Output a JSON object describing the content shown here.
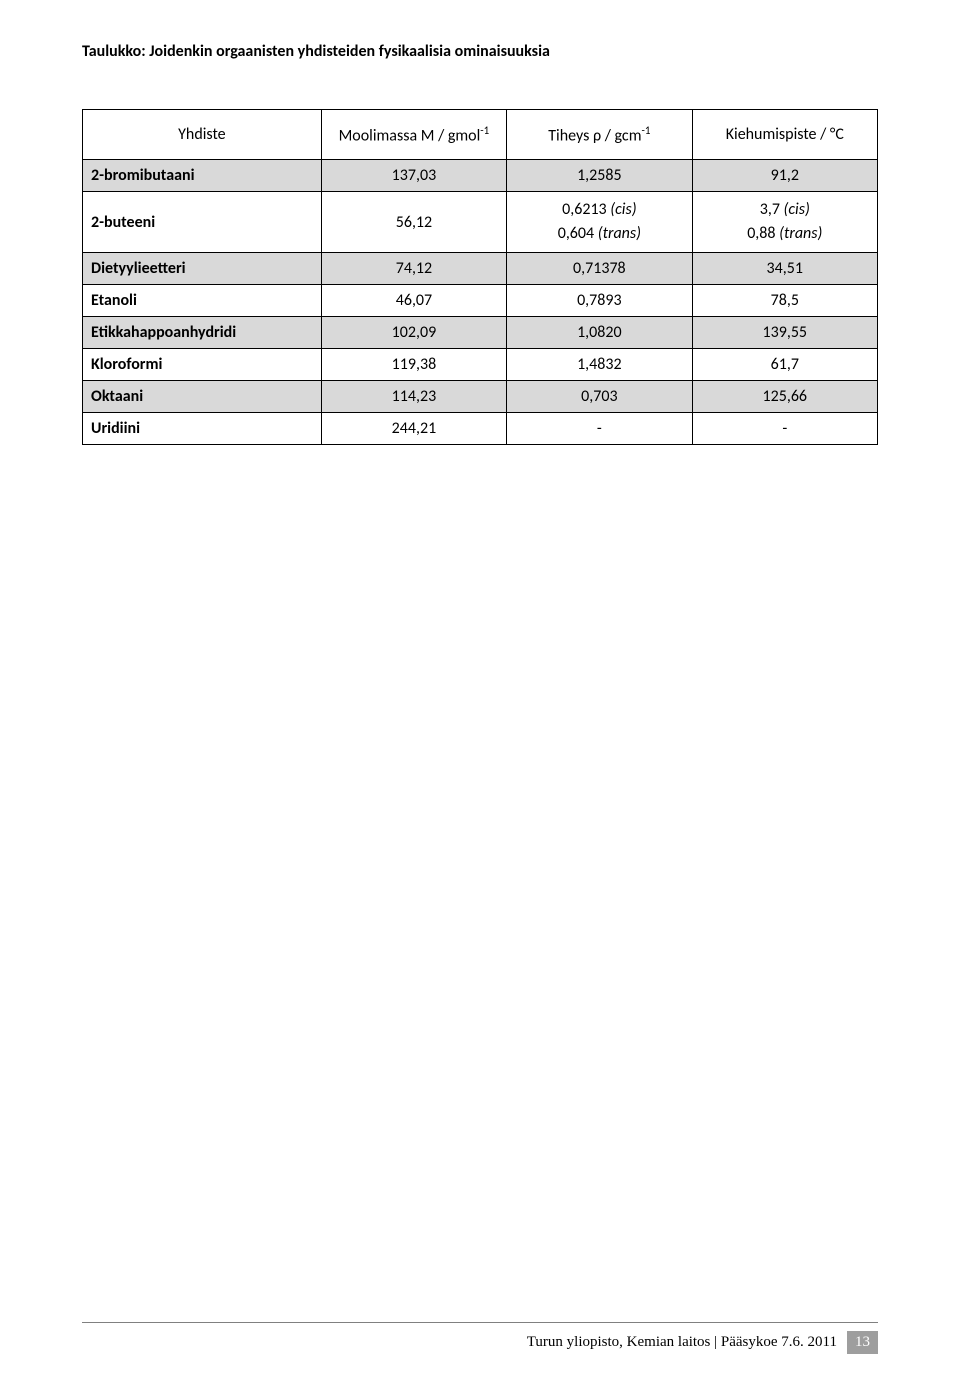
{
  "page_title": "Taulukko: Joidenkin orgaanisten yhdisteiden fysikaalisia ominaisuuksia",
  "table": {
    "headers": {
      "compound": "Yhdiste",
      "molar_mass_label": "Moolimassa M / gmol",
      "molar_mass_exp": "-1",
      "density_label": "Tiheys ρ / gcm",
      "density_exp": "-1",
      "boiling_point": "Kiehumispiste / °C"
    },
    "rows": [
      {
        "compound": "2-bromibutaani",
        "molar_mass": "137,03",
        "density": "1,2585",
        "boiling_point": "91,2",
        "shaded": true,
        "multiline": false
      },
      {
        "compound": "2-buteeni",
        "molar_mass": "56,12",
        "density_line1": "0,6213 ",
        "density_cis": "(cis)",
        "density_line2": "0,604 ",
        "density_trans": "(trans)",
        "bp_line1": "3,7 ",
        "bp_cis": "(cis)",
        "bp_line2": "0,88 ",
        "bp_trans": "(trans)",
        "shaded": false,
        "multiline": true
      },
      {
        "compound": "Dietyylieetteri",
        "molar_mass": "74,12",
        "density": "0,71378",
        "boiling_point": "34,51",
        "shaded": true,
        "multiline": false
      },
      {
        "compound": "Etanoli",
        "molar_mass": "46,07",
        "density": "0,7893",
        "boiling_point": "78,5",
        "shaded": false,
        "multiline": false
      },
      {
        "compound": "Etikkahappoanhydridi",
        "molar_mass": "102,09",
        "density": "1,0820",
        "boiling_point": "139,55",
        "shaded": true,
        "multiline": false
      },
      {
        "compound": "Kloroformi",
        "molar_mass": "119,38",
        "density": "1,4832",
        "boiling_point": "61,7",
        "shaded": false,
        "multiline": false
      },
      {
        "compound": "Oktaani",
        "molar_mass": "114,23",
        "density": "0,703",
        "boiling_point": "125,66",
        "shaded": true,
        "multiline": false
      },
      {
        "compound": "Uridiini",
        "molar_mass": "244,21",
        "density": "-",
        "boiling_point": "-",
        "shaded": false,
        "multiline": false
      }
    ]
  },
  "footer": {
    "text": "Turun yliopisto, Kemian laitos | Pääsykoe 7.6. 2011",
    "page_number": "13"
  },
  "colors": {
    "shaded_bg": "#d9d9d9",
    "page_number_bg": "#9e9e9e",
    "text": "#000000",
    "border": "#000000",
    "footer_line": "#808080"
  }
}
